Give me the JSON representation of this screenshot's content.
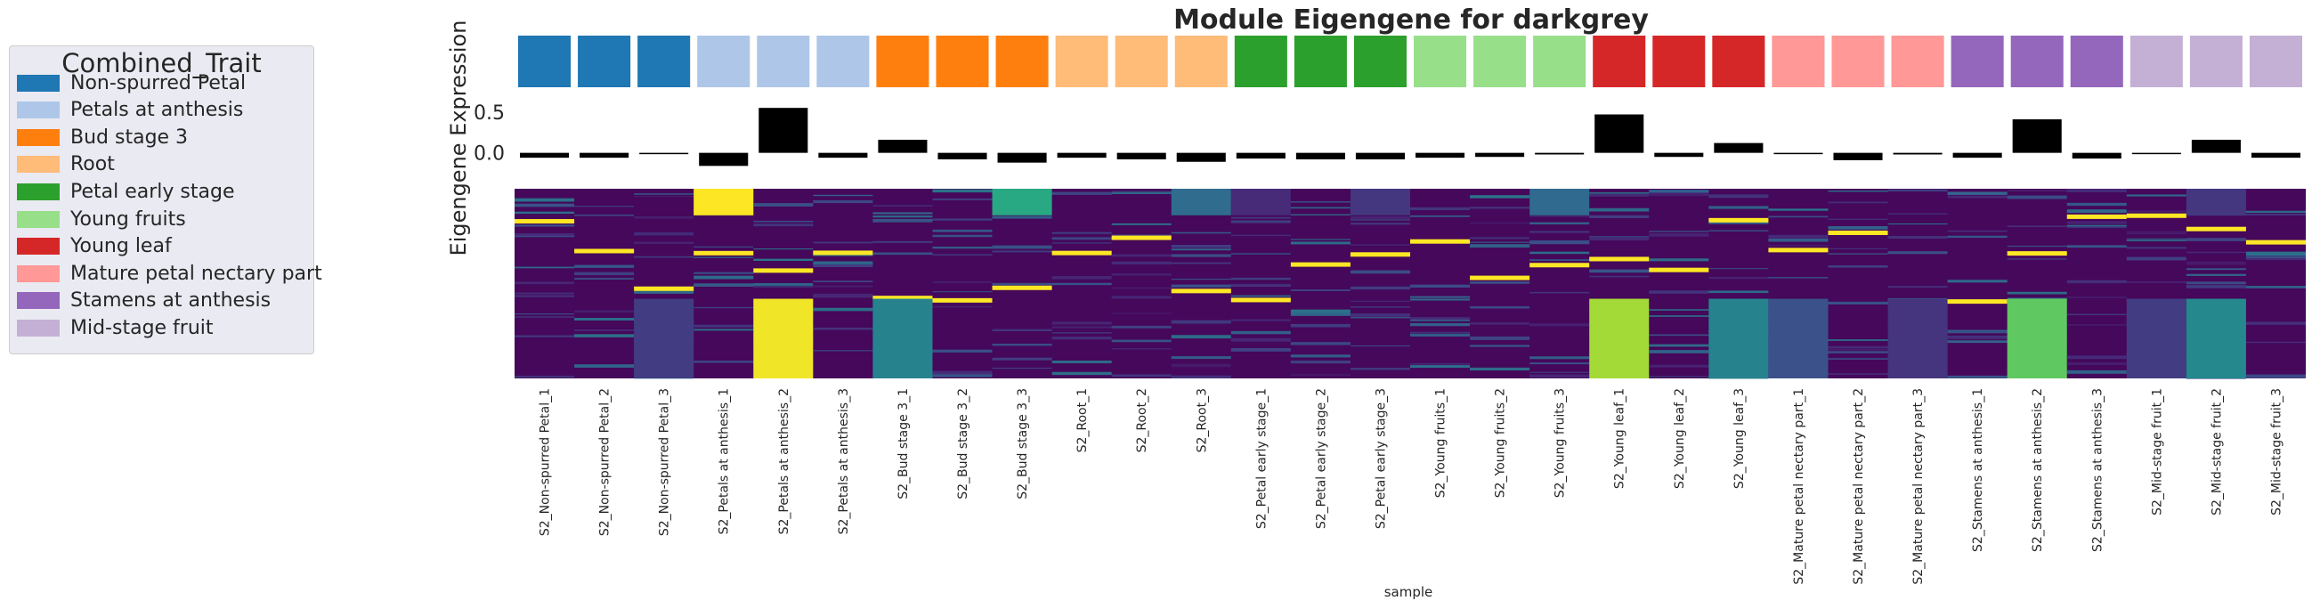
{
  "chart_data": {
    "type": "heatmap",
    "title": "Module Eigengene for darkgrey",
    "ylabel": "Eigengene Expression",
    "xlabel": "sample",
    "bar_ylim": [
      -0.2,
      0.65
    ],
    "bar_yticks": [
      "0.5",
      "0.0"
    ],
    "bar_ytick_values": [
      0.5,
      0.0
    ],
    "legend": {
      "title": "Combined_Trait",
      "placement": "left",
      "entries": [
        {
          "label": "Non-spurred Petal",
          "color": "#1f77b4"
        },
        {
          "label": "Petals at anthesis",
          "color": "#aec7e8"
        },
        {
          "label": "Bud stage 3",
          "color": "#ff7f0e"
        },
        {
          "label": "Root",
          "color": "#ffbb78"
        },
        {
          "label": "Petal early stage",
          "color": "#2ca02c"
        },
        {
          "label": "Young fruits",
          "color": "#98df8a"
        },
        {
          "label": "Young leaf",
          "color": "#d62728"
        },
        {
          "label": "Mature petal nectary part",
          "color": "#ff9896"
        },
        {
          "label": "Stamens at anthesis",
          "color": "#9467bd"
        },
        {
          "label": "Mid-stage fruit",
          "color": "#c5b0d5"
        }
      ]
    },
    "samples": [
      {
        "label": "S2_Non-spurred Petal_1",
        "trait": 0,
        "value": -0.06
      },
      {
        "label": "S2_Non-spurred Petal_2",
        "trait": 0,
        "value": -0.06
      },
      {
        "label": "S2_Non-spurred Petal_3",
        "trait": 0,
        "value": -0.01
      },
      {
        "label": "S2_Petals at anthesis_1",
        "trait": 1,
        "value": -0.16
      },
      {
        "label": "S2_Petals at anthesis_2",
        "trait": 1,
        "value": 0.55
      },
      {
        "label": "S2_Petals at anthesis_3",
        "trait": 1,
        "value": -0.06
      },
      {
        "label": "S2_Bud stage 3_1",
        "trait": 2,
        "value": 0.16
      },
      {
        "label": "S2_Bud stage 3_2",
        "trait": 2,
        "value": -0.08
      },
      {
        "label": "S2_Bud stage 3_3",
        "trait": 2,
        "value": -0.12
      },
      {
        "label": "S2_Root_1",
        "trait": 3,
        "value": -0.06
      },
      {
        "label": "S2_Root_2",
        "trait": 3,
        "value": -0.08
      },
      {
        "label": "S2_Root_3",
        "trait": 3,
        "value": -0.11
      },
      {
        "label": "S2_Petal early stage_1",
        "trait": 4,
        "value": -0.07
      },
      {
        "label": "S2_Petal early stage_2",
        "trait": 4,
        "value": -0.08
      },
      {
        "label": "S2_Petal early stage_3",
        "trait": 4,
        "value": -0.08
      },
      {
        "label": "S2_Young fruits_1",
        "trait": 5,
        "value": -0.06
      },
      {
        "label": "S2_Young fruits_2",
        "trait": 5,
        "value": -0.05
      },
      {
        "label": "S2_Young fruits_3",
        "trait": 5,
        "value": -0.02
      },
      {
        "label": "S2_Young leaf_1",
        "trait": 6,
        "value": 0.47
      },
      {
        "label": "S2_Young leaf_2",
        "trait": 6,
        "value": -0.05
      },
      {
        "label": "S2_Young leaf_3",
        "trait": 6,
        "value": 0.12
      },
      {
        "label": "S2_Mature petal nectary part_1",
        "trait": 7,
        "value": -0.01
      },
      {
        "label": "S2_Mature petal nectary part_2",
        "trait": 7,
        "value": -0.09
      },
      {
        "label": "S2_Mature petal nectary part_3",
        "trait": 7,
        "value": -0.02
      },
      {
        "label": "S2_Stamens at anthesis_1",
        "trait": 8,
        "value": -0.06
      },
      {
        "label": "S2_Stamens at anthesis_2",
        "trait": 8,
        "value": 0.41
      },
      {
        "label": "S2_Stamens at anthesis_3",
        "trait": 8,
        "value": -0.07
      },
      {
        "label": "S2_Mid-stage fruit_1",
        "trait": 9,
        "value": 0.0
      },
      {
        "label": "S2_Mid-stage fruit_2",
        "trait": 9,
        "value": 0.16
      },
      {
        "label": "S2_Mid-stage fruit_3",
        "trait": 9,
        "value": -0.06
      }
    ],
    "heatmap": {
      "colormap": "viridis",
      "note_colors": {
        "low": "#440154",
        "high": "#fde725"
      }
    }
  }
}
